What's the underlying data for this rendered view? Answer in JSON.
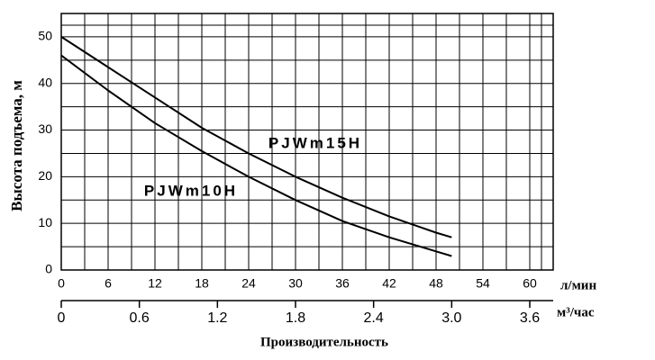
{
  "chart_data": {
    "type": "line",
    "y_label": "Высота подъема, м",
    "x_label": "Производительность",
    "x_unit": "л/мин",
    "x2_unit": "м³/час",
    "x": [
      0,
      6,
      12,
      18,
      24,
      30,
      36,
      42,
      48,
      50
    ],
    "series": [
      {
        "name": "PJWm15H",
        "color": "#000000",
        "values": [
          50,
          43.5,
          37,
          30.5,
          25,
          20,
          15.5,
          11.5,
          8,
          7
        ]
      },
      {
        "name": "PJWm10H",
        "color": "#000000",
        "values": [
          46,
          38.5,
          31.5,
          25.5,
          20,
          15,
          10.5,
          7,
          4,
          3
        ]
      }
    ],
    "xlim": [
      0,
      63
    ],
    "xticks": [
      0,
      6,
      12,
      18,
      24,
      30,
      36,
      42,
      48,
      54,
      60
    ],
    "x2lim": [
      0,
      3.78
    ],
    "x2ticks": [
      0,
      0.6,
      1.2,
      1.8,
      2.4,
      {
        "value": 3,
        "label": "3.0"
      },
      3.6
    ],
    "ylim": [
      0,
      55
    ],
    "yticks": [
      0,
      10,
      20,
      30,
      40,
      50
    ],
    "grid": true
  }
}
